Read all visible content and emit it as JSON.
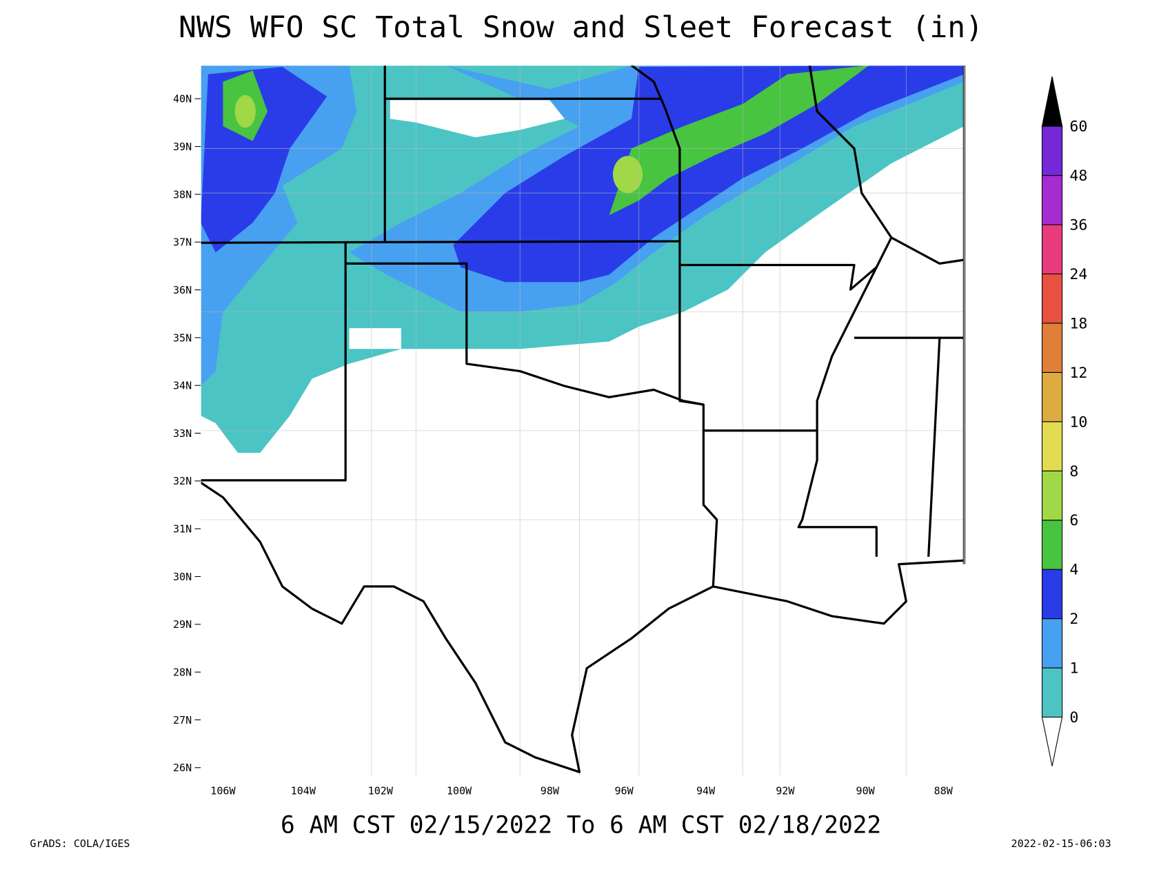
{
  "title": "NWS WFO SC Total Snow and Sleet Forecast (in)",
  "period": "6 AM CST 02/15/2022 To 6 AM CST 02/18/2022",
  "credit": "GrADS: COLA/IGES",
  "timestamp": "2022-02-15-06:03",
  "lat_labels": [
    "40N",
    "39N",
    "38N",
    "37N",
    "36N",
    "35N",
    "34N",
    "33N",
    "32N",
    "31N",
    "30N",
    "29N",
    "28N",
    "27N",
    "26N"
  ],
  "lon_labels": [
    "106W",
    "104W",
    "102W",
    "100W",
    "98W",
    "96W",
    "94W",
    "92W",
    "90W",
    "88W"
  ],
  "legend": {
    "levels": [
      0,
      1,
      2,
      4,
      6,
      8,
      10,
      12,
      18,
      24,
      36,
      48,
      60
    ],
    "colors": [
      "#4cc4c4",
      "#48a0f0",
      "#2a3ce8",
      "#48c440",
      "#a0d848",
      "#e4dc50",
      "#dcac40",
      "#e08038",
      "#e85040",
      "#e83c7c",
      "#a42cd0",
      "#7428d8"
    ],
    "above_color": "#000000",
    "below_color": "#ffffff"
  }
}
